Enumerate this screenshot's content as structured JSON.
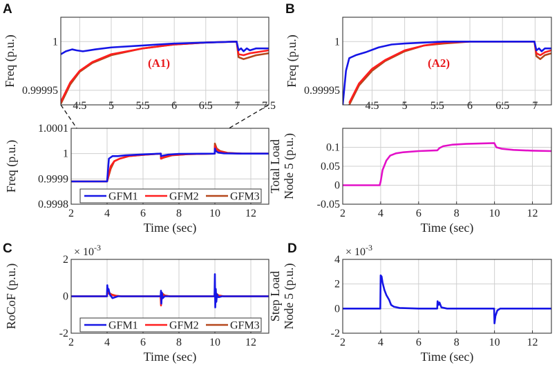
{
  "panels": {
    "A": "A",
    "B": "B",
    "C": "C",
    "D": "D"
  },
  "colors": {
    "GFM1": "#1515e6",
    "GFM2": "#ff1e1e",
    "GFM3": "#b5471b",
    "load": "#e310c8",
    "grid": "#cfcfcf"
  },
  "chart_data": [
    {
      "id": "A1",
      "type": "line",
      "annotation": "(A1)",
      "xlabel": "",
      "ylabel": "Freq (p.u.)",
      "xlim": [
        4.2,
        7.5
      ],
      "ylim": [
        0.999935,
        1.000025
      ],
      "xticks": [
        4.5,
        5,
        5.5,
        6,
        6.5,
        7,
        7.5
      ],
      "xtick_labels": [
        "4.5",
        "5",
        "5.5",
        "6",
        "6.5",
        "7",
        "7.5"
      ],
      "yticks": [
        0.99995,
        1.0
      ],
      "ytick_labels": [
        "0.99995",
        "1"
      ],
      "series": [
        {
          "name": "GFM3",
          "x": [
            4.2,
            4.35,
            4.5,
            4.7,
            5.0,
            5.5,
            6.0,
            6.5,
            6.99,
            7.02,
            7.1,
            7.2,
            7.3,
            7.4,
            7.5
          ],
          "y": [
            0.999936,
            0.999956,
            0.999969,
            0.999978,
            0.999986,
            0.999993,
            0.999997,
            0.999999,
            1.0,
            0.999984,
            0.999982,
            0.999984,
            0.999986,
            0.999987,
            0.999988
          ]
        },
        {
          "name": "GFM2",
          "x": [
            4.2,
            4.35,
            4.5,
            4.7,
            5.0,
            5.5,
            6.0,
            6.5,
            6.99,
            7.02,
            7.1,
            7.2,
            7.3,
            7.4,
            7.5
          ],
          "y": [
            0.999938,
            0.999958,
            0.99997,
            0.999979,
            0.999987,
            0.999993,
            0.999997,
            0.999999,
            1.0,
            0.999987,
            0.999986,
            0.999988,
            0.999989,
            0.99999,
            0.999991
          ]
        },
        {
          "name": "GFM1",
          "x": [
            4.2,
            4.28,
            4.38,
            4.45,
            4.55,
            4.75,
            5.0,
            5.5,
            6.0,
            6.5,
            6.99,
            7.02,
            7.06,
            7.1,
            7.15,
            7.2,
            7.3,
            7.5
          ],
          "y": [
            0.999987,
            0.99999,
            0.999992,
            0.999991,
            0.99999,
            0.999992,
            0.999994,
            0.999996,
            0.999998,
            0.999999,
            1.0,
            0.999991,
            0.999993,
            0.99999,
            0.999993,
            0.999991,
            0.999993,
            0.999993
          ]
        }
      ]
    },
    {
      "id": "A2",
      "type": "line",
      "annotation": "(A2)",
      "xlabel": "",
      "ylabel": "Freq (p.u.)",
      "xlim": [
        4.05,
        7.25
      ],
      "ylim": [
        0.999935,
        1.000025
      ],
      "xticks": [
        4.5,
        5,
        5.5,
        6,
        6.5,
        7
      ],
      "xtick_labels": [
        "4.5",
        "5",
        "5.5",
        "6",
        "6.5",
        "7"
      ],
      "yticks": [
        0.99995,
        1.0
      ],
      "ytick_labels": [
        "0.99995",
        "1"
      ],
      "series": [
        {
          "name": "GFM3",
          "x": [
            4.15,
            4.3,
            4.5,
            4.7,
            5.0,
            5.3,
            5.6,
            6.0,
            6.5,
            6.99,
            7.02,
            7.08,
            7.15,
            7.25
          ],
          "y": [
            0.999935,
            0.999955,
            0.99997,
            0.99998,
            0.99999,
            0.999996,
            0.999998,
            1.0,
            1.0,
            1.0,
            0.999985,
            0.999982,
            0.999986,
            0.999988
          ]
        },
        {
          "name": "GFM2",
          "x": [
            4.15,
            4.3,
            4.5,
            4.7,
            5.0,
            5.3,
            5.6,
            6.0,
            6.5,
            6.99,
            7.02,
            7.08,
            7.15,
            7.25
          ],
          "y": [
            0.999937,
            0.999957,
            0.999972,
            0.999981,
            0.999991,
            0.999996,
            0.999999,
            1.0,
            1.0,
            1.0,
            0.999988,
            0.999986,
            0.999989,
            0.999991
          ]
        },
        {
          "name": "GFM1",
          "x": [
            4.05,
            4.1,
            4.15,
            4.25,
            4.4,
            4.6,
            4.8,
            5.0,
            5.3,
            5.6,
            6.0,
            6.99,
            7.02,
            7.06,
            7.1,
            7.15,
            7.25
          ],
          "y": [
            0.999935,
            0.99997,
            0.999983,
            0.999986,
            0.999989,
            0.999994,
            0.999997,
            0.999998,
            0.999999,
            1.0,
            1.0,
            1.0,
            0.999991,
            0.999993,
            0.99999,
            0.999993,
            0.999993
          ]
        }
      ]
    },
    {
      "id": "A",
      "type": "line",
      "xlabel": "Time (sec)",
      "ylabel": "Freq (p.u.)",
      "xlim": [
        2,
        13
      ],
      "ylim": [
        0.9998,
        1.0001
      ],
      "xticks": [
        2,
        4,
        6,
        8,
        10,
        12
      ],
      "xtick_labels": [
        "2",
        "4",
        "6",
        "8",
        "10",
        "12"
      ],
      "yticks": [
        0.9998,
        0.9999,
        1.0,
        1.0001
      ],
      "ytick_labels": [
        "0.9998",
        "0.9999",
        "1",
        "1.0001"
      ],
      "legend": [
        "GFM1",
        "GFM2",
        "GFM3"
      ],
      "legend_position": "bottom",
      "series": [
        {
          "name": "GFM3",
          "x": [
            2,
            3.98,
            4.0,
            4.2,
            4.4,
            4.7,
            5.2,
            6.0,
            6.99,
            7.0,
            7.15,
            7.6,
            8.5,
            9.99,
            10.0,
            10.1,
            10.3,
            10.7,
            11.5,
            13
          ],
          "y": [
            0.99989,
            0.99989,
            0.99989,
            0.99994,
            0.99997,
            0.99998,
            0.99999,
            0.999995,
            1.0,
            0.99998,
            0.999984,
            0.999993,
            0.999998,
            1.0,
            1.00004,
            1.00002,
            1.00001,
            1.000003,
            1.0,
            1.0
          ]
        },
        {
          "name": "GFM2",
          "x": [
            2,
            3.98,
            4.0,
            4.2,
            4.4,
            4.7,
            5.2,
            6.0,
            6.99,
            7.0,
            7.15,
            7.6,
            8.5,
            9.99,
            10.0,
            10.1,
            10.3,
            10.7,
            11.5,
            13
          ],
          "y": [
            0.99989,
            0.99989,
            0.99989,
            0.99995,
            0.99997,
            0.99998,
            0.99999,
            0.999995,
            1.0,
            0.99998,
            0.999986,
            0.999994,
            0.999998,
            1.0,
            1.00003,
            1.000015,
            1.000008,
            1.000002,
            1.0,
            1.0
          ]
        },
        {
          "name": "GFM1",
          "x": [
            2,
            3.98,
            4.0,
            4.1,
            4.3,
            4.6,
            5.0,
            6.0,
            6.99,
            7.0,
            7.1,
            7.4,
            8.0,
            9.99,
            10.0,
            10.05,
            10.2,
            10.5,
            11.5,
            13
          ],
          "y": [
            0.99989,
            0.99989,
            0.99989,
            0.99998,
            0.99999,
            0.99999,
            0.999993,
            0.999997,
            1.0,
            0.99999,
            0.999992,
            0.999996,
            0.999999,
            1.0,
            1.00002,
            1.00001,
            1.000004,
            1.000001,
            1.0,
            1.0
          ]
        }
      ]
    },
    {
      "id": "B",
      "type": "line",
      "xlabel": "Time (sec)",
      "ylabel": "Total Load Node 5 (p.u.)",
      "ylabel_lines": [
        "Total Load",
        "Node 5 (p.u.)"
      ],
      "xlim": [
        2,
        13
      ],
      "ylim": [
        -0.05,
        0.15
      ],
      "xticks": [
        2,
        4,
        6,
        8,
        10,
        12
      ],
      "xtick_labels": [
        "2",
        "4",
        "6",
        "8",
        "10",
        "12"
      ],
      "yticks": [
        -0.05,
        0,
        0.05,
        0.1
      ],
      "ytick_labels": [
        "-0.05",
        "0",
        "0.05",
        "0.1"
      ],
      "series": [
        {
          "name": "Total Load",
          "x": [
            2,
            3.95,
            4.0,
            4.1,
            4.3,
            4.5,
            4.8,
            5.2,
            6.0,
            6.99,
            7.1,
            7.3,
            7.8,
            8.5,
            9.99,
            10.1,
            10.4,
            11,
            12,
            13
          ],
          "y": [
            0,
            0,
            0.01,
            0.04,
            0.065,
            0.078,
            0.084,
            0.087,
            0.09,
            0.092,
            0.098,
            0.103,
            0.107,
            0.109,
            0.111,
            0.1,
            0.096,
            0.093,
            0.091,
            0.09
          ]
        }
      ]
    },
    {
      "id": "C",
      "type": "line",
      "xlabel": "Time (sec)",
      "ylabel": "RoCoF (p.u.)",
      "multiplier": "× 10",
      "multiplier_exp": "-3",
      "xlim": [
        2,
        13
      ],
      "ylim": [
        -2,
        2
      ],
      "xticks": [
        2,
        4,
        6,
        8,
        10,
        12
      ],
      "xtick_labels": [
        "2",
        "4",
        "6",
        "8",
        "10",
        "12"
      ],
      "yticks": [
        -2,
        0,
        2
      ],
      "ytick_labels": [
        "-2",
        "0",
        "2"
      ],
      "legend": [
        "GFM1",
        "GFM2",
        "GFM3"
      ],
      "legend_position": "bottom",
      "series": [
        {
          "name": "GFM3",
          "x": [
            2,
            3.99,
            4.02,
            4.1,
            4.25,
            4.5,
            4.8,
            6.98,
            7.0,
            7.03,
            7.08,
            7.2,
            7.5,
            9.98,
            10.0,
            10.03,
            10.08,
            10.2,
            10.5,
            13
          ],
          "y": [
            0,
            0,
            0.25,
            0.2,
            0.1,
            0.03,
            0,
            0,
            -0.3,
            -0.1,
            0.15,
            0.05,
            0,
            0,
            0.35,
            -0.15,
            0.15,
            0.05,
            0,
            0
          ]
        },
        {
          "name": "GFM2",
          "x": [
            2,
            3.99,
            4.02,
            4.1,
            4.25,
            4.5,
            4.8,
            6.98,
            7.0,
            7.03,
            7.08,
            7.2,
            7.5,
            9.98,
            10.0,
            10.03,
            10.08,
            10.2,
            10.5,
            13
          ],
          "y": [
            0,
            0,
            0.2,
            0.15,
            0.08,
            0.02,
            0,
            0,
            -0.5,
            -0.2,
            0.1,
            0.03,
            0,
            0,
            0.3,
            -0.2,
            0.1,
            0.03,
            0,
            0
          ]
        },
        {
          "name": "GFM1",
          "x": [
            2,
            3.99,
            4.01,
            4.04,
            4.08,
            4.15,
            4.3,
            4.6,
            6.98,
            7.0,
            7.02,
            7.05,
            7.1,
            7.2,
            9.98,
            10.0,
            10.02,
            10.05,
            10.08,
            10.12,
            10.2,
            10.4,
            13
          ],
          "y": [
            0,
            0,
            0.6,
            0.3,
            0.4,
            0.1,
            -0.1,
            0,
            0,
            0.3,
            -0.4,
            0.2,
            -0.1,
            0,
            0,
            1.2,
            -0.6,
            0.4,
            -0.3,
            0.1,
            -0.05,
            0,
            0
          ]
        }
      ]
    },
    {
      "id": "D",
      "type": "line",
      "xlabel": "Time (sec)",
      "ylabel": "Step Load Node 5 (p.u.)",
      "ylabel_lines": [
        "Step Load",
        "Node 5 (p.u.)"
      ],
      "multiplier": "× 10",
      "multiplier_exp": "-3",
      "xlim": [
        2,
        13
      ],
      "ylim": [
        -2,
        4
      ],
      "xticks": [
        2,
        4,
        6,
        8,
        10,
        12
      ],
      "xtick_labels": [
        "2",
        "4",
        "6",
        "8",
        "10",
        "12"
      ],
      "yticks": [
        -2,
        0,
        2,
        4
      ],
      "ytick_labels": [
        "-2",
        "0",
        "2",
        "4"
      ],
      "series": [
        {
          "name": "Step Load",
          "x": [
            2,
            3.98,
            4.0,
            4.05,
            4.1,
            4.2,
            4.3,
            4.45,
            4.55,
            4.7,
            5.0,
            6.0,
            6.98,
            7.0,
            7.05,
            7.1,
            7.2,
            7.5,
            9.98,
            10.0,
            10.05,
            10.15,
            10.3,
            11,
            13
          ],
          "y": [
            0,
            0,
            2.7,
            2.6,
            2.1,
            1.5,
            1.1,
            0.7,
            0.3,
            0.15,
            0.05,
            0,
            0,
            0.6,
            0.3,
            0.5,
            0.1,
            0,
            0,
            -1.2,
            -0.6,
            -0.15,
            0,
            0,
            0
          ]
        }
      ]
    }
  ]
}
